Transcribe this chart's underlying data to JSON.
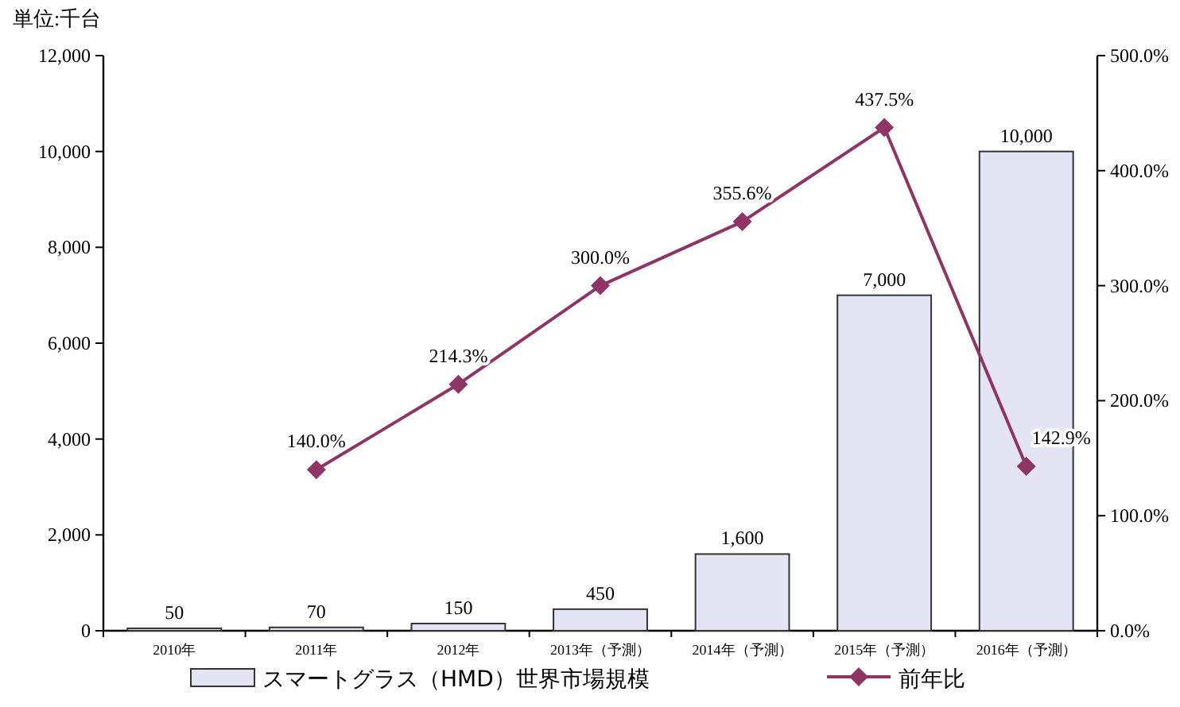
{
  "chart_data": {
    "type": "bar",
    "ylabel": "単位:千台",
    "categories": [
      "2010年",
      "2011年",
      "2012年",
      "2013年（予測）",
      "2014年（予測）",
      "2015年（予測）",
      "2016年（予測）"
    ],
    "series": [
      {
        "name": "スマートグラス（HMD）世界市場規模",
        "color": "#e4e4f4",
        "values": [
          50,
          70,
          150,
          450,
          1600,
          7000,
          10000
        ],
        "value_labels": [
          "50",
          "70",
          "150",
          "450",
          "1,600",
          "7,000",
          "10,000"
        ]
      },
      {
        "name": "前年比",
        "type": "line",
        "axis": "y2",
        "color": "#8e3566",
        "marker": "diamond",
        "values": [
          null,
          140.0,
          214.3,
          300.0,
          355.6,
          437.5,
          142.9
        ],
        "value_labels": [
          null,
          "140.0%",
          "214.3%",
          "300.0%",
          "355.6%",
          "437.5%",
          "142.9%"
        ]
      }
    ],
    "ylim": [
      0,
      12000
    ],
    "yticks": [
      {
        "value": 0,
        "label": "0"
      },
      {
        "value": 2000,
        "label": "2,000"
      },
      {
        "value": 4000,
        "label": "4,000"
      },
      {
        "value": 6000,
        "label": "6,000"
      },
      {
        "value": 8000,
        "label": "8,000"
      },
      {
        "value": 10000,
        "label": "10,000"
      },
      {
        "value": 12000,
        "label": "12,000"
      }
    ],
    "y2lim": [
      0,
      500
    ],
    "y2ticks": [
      {
        "value": 0,
        "label": "0.0%"
      },
      {
        "value": 100,
        "label": "100.0%"
      },
      {
        "value": 200,
        "label": "200.0%"
      },
      {
        "value": 300,
        "label": "300.0%"
      },
      {
        "value": 400,
        "label": "400.0%"
      },
      {
        "value": 500,
        "label": "500.0%"
      }
    ],
    "grid": false,
    "legend": "bottom"
  }
}
